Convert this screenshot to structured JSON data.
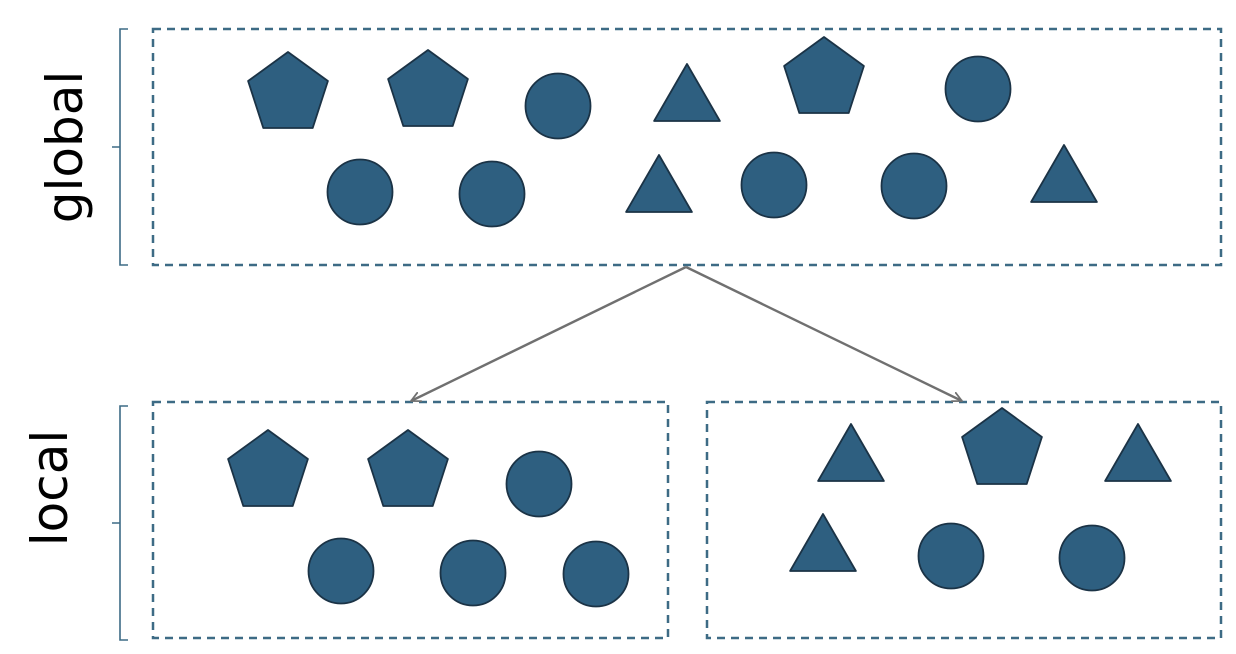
{
  "labels": {
    "global": "global",
    "local": "local"
  },
  "colors": {
    "shape_fill": "#2e5f80",
    "shape_stroke": "#1b3346",
    "box_dash": "#3d6b85",
    "bracket": "#3d6b85",
    "arrow": "#707070"
  },
  "global_shapes": [
    "pentagon",
    "pentagon",
    "circle",
    "triangle",
    "pentagon",
    "circle",
    "circle",
    "circle",
    "triangle",
    "circle",
    "circle",
    "triangle"
  ],
  "local_left_shapes": [
    "pentagon",
    "pentagon",
    "circle",
    "circle",
    "circle",
    "circle"
  ],
  "local_right_shapes": [
    "triangle",
    "pentagon",
    "triangle",
    "triangle",
    "circle",
    "circle"
  ]
}
